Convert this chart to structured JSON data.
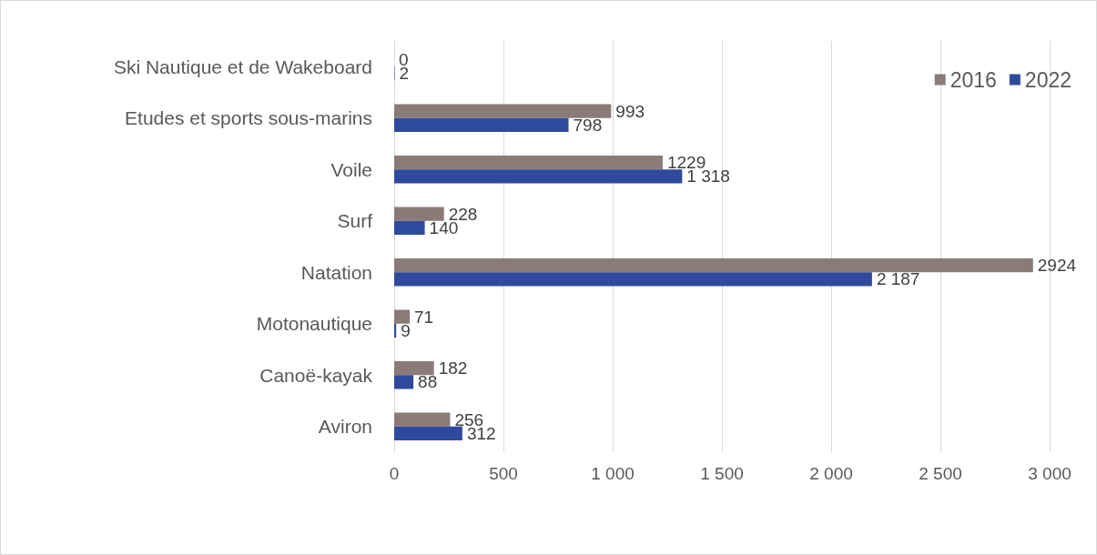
{
  "chart_data": {
    "type": "bar",
    "orientation": "horizontal",
    "categories": [
      "Ski Nautique et de Wakeboard",
      "Etudes et sports sous-marins",
      "Voile",
      "Surf",
      "Natation",
      "Motonautique",
      "Canoë-kayak",
      "Aviron"
    ],
    "series": [
      {
        "name": "2016",
        "color": "#8b7b78",
        "values": [
          0,
          993,
          1229,
          228,
          2924,
          71,
          182,
          256
        ],
        "value_labels": [
          "0",
          "993",
          "1229",
          "228",
          "2924",
          "71",
          "182",
          "256"
        ]
      },
      {
        "name": "2022",
        "color": "#2f4a9c",
        "values": [
          2,
          798,
          1318,
          140,
          2187,
          9,
          88,
          312
        ],
        "value_labels": [
          "2",
          "798",
          "1 318",
          "140",
          "2 187",
          "9",
          "88",
          "312"
        ]
      }
    ],
    "xlim": [
      0,
      3000
    ],
    "xticks": [
      0,
      500,
      {
        "value": 1000,
        "label": "1 000"
      },
      {
        "value": 1500,
        "label": "1 500"
      },
      {
        "value": 2000,
        "label": "2 000"
      },
      {
        "value": 2500,
        "label": "2 500"
      },
      {
        "value": 3000,
        "label": "3 000"
      }
    ],
    "grid": "x",
    "legend": "top right"
  }
}
